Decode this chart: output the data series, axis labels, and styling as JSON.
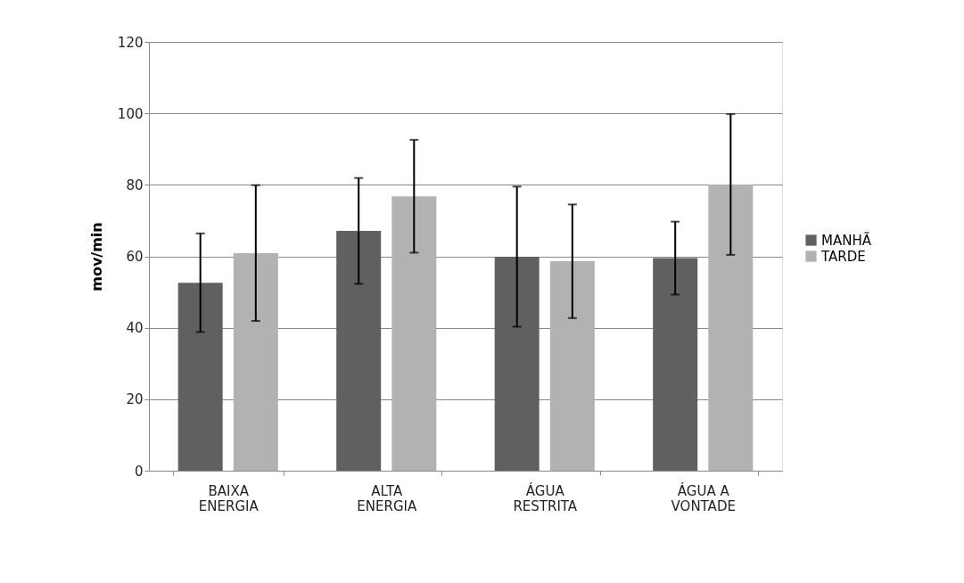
{
  "chart_data": {
    "type": "bar",
    "ylabel": "mov/min",
    "categories": [
      "BAIXA\nENERGIA",
      "ALTA\nENERGIA",
      "ÁGUA\nRESTRITA",
      "ÁGUA A\nVONTADE"
    ],
    "series": [
      {
        "name": "MANHÃ",
        "color": "#606060",
        "values": [
          52.6,
          67.1,
          59.9,
          59.5
        ],
        "errors": [
          13.8,
          14.8,
          19.6,
          10.2
        ]
      },
      {
        "name": "TARDE",
        "color": "#b2b2b2",
        "values": [
          60.9,
          76.8,
          58.6,
          80.1
        ],
        "errors": [
          19,
          15.8,
          15.9,
          19.7
        ]
      }
    ],
    "ylim": [
      0,
      120
    ],
    "yticks": [
      0,
      20,
      40,
      60,
      80,
      100,
      120
    ],
    "grid": "y",
    "legend": "right"
  }
}
